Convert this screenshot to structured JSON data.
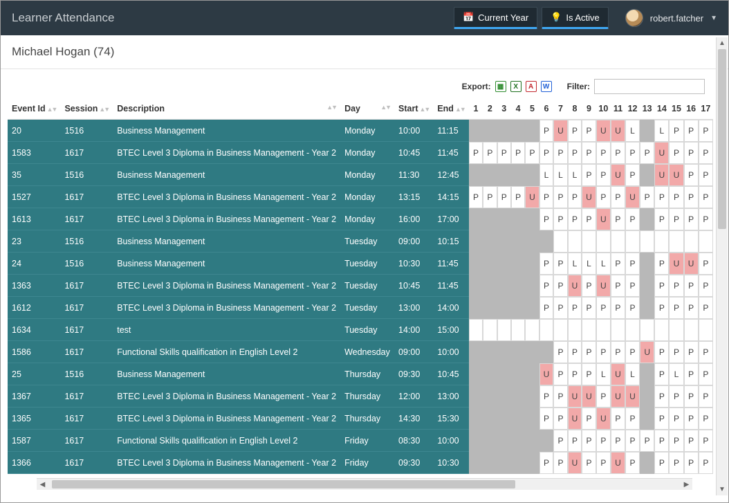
{
  "header": {
    "title": "Learner Attendance",
    "btn_current_year": "Current Year",
    "btn_is_active": "Is Active",
    "username": "robert.fatcher"
  },
  "subhead": "Michael Hogan (74)",
  "toolbar": {
    "export_label": "Export:",
    "filter_label": "Filter:",
    "filter_value": ""
  },
  "columns": {
    "event_id": "Event Id",
    "session": "Session",
    "description": "Description",
    "day": "Day",
    "start": "Start",
    "end": "End",
    "numbers": [
      "1",
      "2",
      "3",
      "4",
      "5",
      "6",
      "7",
      "8",
      "9",
      "10",
      "11",
      "12",
      "13",
      "14",
      "15",
      "16",
      "17"
    ]
  },
  "att_colors": {
    "P": "#ffffff",
    "U": "#f2a9a9",
    "L": "#ffffff",
    "G": "#b8b8b8",
    "E": "#ffffff"
  },
  "row_bg": "#2f7a82",
  "rows": [
    {
      "event_id": "20",
      "session": "1516",
      "desc": "Business Management",
      "day": "Monday",
      "start": "10:00",
      "end": "11:15",
      "cells": [
        "G",
        "G",
        "G",
        "G",
        "G",
        "P",
        "U",
        "P",
        "P",
        "U",
        "U",
        "L",
        "G",
        "L",
        "P",
        "P",
        "P"
      ]
    },
    {
      "event_id": "1583",
      "session": "1617",
      "desc": "BTEC Level 3 Diploma in Business Management - Year 2",
      "day": "Monday",
      "start": "10:45",
      "end": "11:45",
      "cells": [
        "P",
        "P",
        "P",
        "P",
        "P",
        "P",
        "P",
        "P",
        "P",
        "P",
        "P",
        "P",
        "P",
        "U",
        "P",
        "P",
        "P"
      ]
    },
    {
      "event_id": "35",
      "session": "1516",
      "desc": "Business Management",
      "day": "Monday",
      "start": "11:30",
      "end": "12:45",
      "cells": [
        "G",
        "G",
        "G",
        "G",
        "G",
        "L",
        "L",
        "L",
        "P",
        "P",
        "U",
        "P",
        "G",
        "U",
        "U",
        "P",
        "P"
      ]
    },
    {
      "event_id": "1527",
      "session": "1617",
      "desc": "BTEC Level 3 Diploma in Business Management - Year 2",
      "day": "Monday",
      "start": "13:15",
      "end": "14:15",
      "cells": [
        "P",
        "P",
        "P",
        "P",
        "U",
        "P",
        "P",
        "P",
        "U",
        "P",
        "P",
        "U",
        "P",
        "P",
        "P",
        "P",
        "P"
      ]
    },
    {
      "event_id": "1613",
      "session": "1617",
      "desc": "BTEC Level 3 Diploma in Business Management - Year 2",
      "day": "Monday",
      "start": "16:00",
      "end": "17:00",
      "cells": [
        "G",
        "G",
        "G",
        "G",
        "G",
        "P",
        "P",
        "P",
        "P",
        "U",
        "P",
        "P",
        "G",
        "P",
        "P",
        "P",
        "P"
      ]
    },
    {
      "event_id": "23",
      "session": "1516",
      "desc": "Business Management",
      "day": "Tuesday",
      "start": "09:00",
      "end": "10:15",
      "cells": [
        "G",
        "G",
        "G",
        "G",
        "G",
        "G",
        "E",
        "E",
        "E",
        "E",
        "E",
        "E",
        "E",
        "E",
        "E",
        "E",
        "E"
      ]
    },
    {
      "event_id": "24",
      "session": "1516",
      "desc": "Business Management",
      "day": "Tuesday",
      "start": "10:30",
      "end": "11:45",
      "cells": [
        "G",
        "G",
        "G",
        "G",
        "G",
        "P",
        "P",
        "L",
        "L",
        "L",
        "P",
        "P",
        "G",
        "P",
        "U",
        "U",
        "P"
      ]
    },
    {
      "event_id": "1363",
      "session": "1617",
      "desc": "BTEC Level 3 Diploma in Business Management - Year 2",
      "day": "Tuesday",
      "start": "10:45",
      "end": "11:45",
      "cells": [
        "G",
        "G",
        "G",
        "G",
        "G",
        "P",
        "P",
        "U",
        "P",
        "U",
        "P",
        "P",
        "G",
        "P",
        "P",
        "P",
        "P"
      ]
    },
    {
      "event_id": "1612",
      "session": "1617",
      "desc": "BTEC Level 3 Diploma in Business Management - Year 2",
      "day": "Tuesday",
      "start": "13:00",
      "end": "14:00",
      "cells": [
        "G",
        "G",
        "G",
        "G",
        "G",
        "P",
        "P",
        "P",
        "P",
        "P",
        "P",
        "P",
        "G",
        "P",
        "P",
        "P",
        "P"
      ]
    },
    {
      "event_id": "1634",
      "session": "1617",
      "desc": "test",
      "day": "Tuesday",
      "start": "14:00",
      "end": "15:00",
      "cells": [
        "E",
        "E",
        "E",
        "E",
        "E",
        "E",
        "E",
        "E",
        "E",
        "E",
        "E",
        "E",
        "E",
        "E",
        "E",
        "E",
        "E"
      ]
    },
    {
      "event_id": "1586",
      "session": "1617",
      "desc": "Functional Skills qualification in English Level 2",
      "day": "Wednesday",
      "start": "09:00",
      "end": "10:00",
      "cells": [
        "G",
        "G",
        "G",
        "G",
        "G",
        "G",
        "P",
        "P",
        "P",
        "P",
        "P",
        "P",
        "U",
        "P",
        "P",
        "P",
        "P"
      ]
    },
    {
      "event_id": "25",
      "session": "1516",
      "desc": "Business Management",
      "day": "Thursday",
      "start": "09:30",
      "end": "10:45",
      "cells": [
        "G",
        "G",
        "G",
        "G",
        "G",
        "U",
        "P",
        "P",
        "P",
        "L",
        "U",
        "L",
        "G",
        "P",
        "L",
        "P",
        "P"
      ]
    },
    {
      "event_id": "1367",
      "session": "1617",
      "desc": "BTEC Level 3 Diploma in Business Management - Year 2",
      "day": "Thursday",
      "start": "12:00",
      "end": "13:00",
      "cells": [
        "G",
        "G",
        "G",
        "G",
        "G",
        "P",
        "P",
        "U",
        "U",
        "P",
        "U",
        "U",
        "G",
        "P",
        "P",
        "P",
        "P"
      ]
    },
    {
      "event_id": "1365",
      "session": "1617",
      "desc": "BTEC Level 3 Diploma in Business Management - Year 2",
      "day": "Thursday",
      "start": "14:30",
      "end": "15:30",
      "cells": [
        "G",
        "G",
        "G",
        "G",
        "G",
        "P",
        "P",
        "U",
        "P",
        "U",
        "P",
        "P",
        "G",
        "P",
        "P",
        "P",
        "P"
      ]
    },
    {
      "event_id": "1587",
      "session": "1617",
      "desc": "Functional Skills qualification in English Level 2",
      "day": "Friday",
      "start": "08:30",
      "end": "10:00",
      "cells": [
        "G",
        "G",
        "G",
        "G",
        "G",
        "G",
        "P",
        "P",
        "P",
        "P",
        "P",
        "P",
        "P",
        "P",
        "P",
        "P",
        "P"
      ]
    },
    {
      "event_id": "1366",
      "session": "1617",
      "desc": "BTEC Level 3 Diploma in Business Management - Year 2",
      "day": "Friday",
      "start": "09:30",
      "end": "10:30",
      "cells": [
        "G",
        "G",
        "G",
        "G",
        "G",
        "P",
        "P",
        "U",
        "P",
        "P",
        "U",
        "P",
        "G",
        "P",
        "P",
        "P",
        "P"
      ]
    }
  ],
  "col_widths": {
    "event_id": 62,
    "session": 58,
    "description": 310,
    "day": 78,
    "start": 46,
    "end": 42,
    "num": 23
  }
}
